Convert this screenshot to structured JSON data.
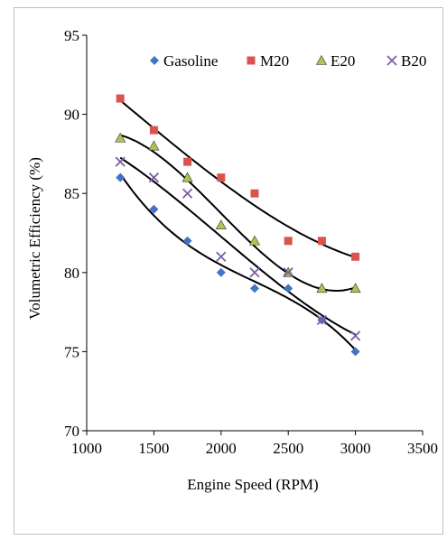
{
  "chart_data": {
    "type": "scatter",
    "title": "",
    "xlabel": "Engine Speed (RPM)",
    "ylabel": "Volumetric Efficiency (%)",
    "xlim": [
      1000,
      3500
    ],
    "ylim": [
      70,
      95
    ],
    "xticks": [
      1000,
      1500,
      2000,
      2500,
      3000,
      3500
    ],
    "yticks": [
      70,
      75,
      80,
      85,
      90,
      95
    ],
    "grid": false,
    "legend_position": "top",
    "trendlines": "polynomial",
    "series": [
      {
        "name": "Gasoline",
        "marker": "diamond",
        "color": "#4472C4",
        "x": [
          1250,
          1500,
          1750,
          2000,
          2250,
          2500,
          2750,
          3000
        ],
        "y": [
          86,
          84,
          82,
          80,
          79,
          79,
          77,
          75
        ]
      },
      {
        "name": "M20",
        "marker": "square",
        "color": "#D9534F",
        "x": [
          1250,
          1500,
          1750,
          2000,
          2250,
          2500,
          2750,
          3000
        ],
        "y": [
          91,
          89,
          87,
          86,
          85,
          82,
          82,
          81
        ]
      },
      {
        "name": "E20",
        "marker": "triangle",
        "color": "#A9C653",
        "x": [
          1250,
          1500,
          1750,
          2000,
          2250,
          2500,
          2750,
          3000
        ],
        "y": [
          88.5,
          88,
          86,
          83,
          82,
          80,
          79,
          79
        ]
      },
      {
        "name": "B20",
        "marker": "x",
        "color": "#7B5FA0",
        "x": [
          1250,
          1500,
          1750,
          2000,
          2250,
          2500,
          2750,
          3000
        ],
        "y": [
          87,
          86,
          85,
          81,
          80,
          80,
          77,
          76
        ]
      }
    ]
  }
}
